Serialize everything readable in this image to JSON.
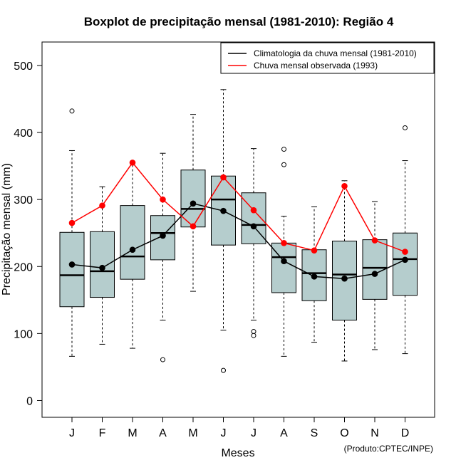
{
  "chart_data": {
    "type": "boxplot",
    "title": "Boxplot de precipitação mensal (1981-2010): Região 4",
    "xlabel": "Meses",
    "ylabel": "Precipitação mensal (mm)",
    "ylim": [
      -25,
      535
    ],
    "yticks": [
      0,
      100,
      200,
      300,
      400,
      500
    ],
    "credit": "(Produto:CPTEC/INPE)",
    "box_color": "#b5cdcd",
    "categories": [
      "J",
      "F",
      "M",
      "A",
      "M",
      "J",
      "J",
      "A",
      "S",
      "O",
      "N",
      "D"
    ],
    "boxes": [
      {
        "whisker_low": 66,
        "q1": 140,
        "median": 187,
        "q3": 251,
        "whisker_high": 373,
        "outliers": [
          432
        ]
      },
      {
        "whisker_low": 84,
        "q1": 154,
        "median": 193,
        "q3": 252,
        "whisker_high": 319,
        "outliers": []
      },
      {
        "whisker_low": 78,
        "q1": 181,
        "median": 215,
        "q3": 291,
        "whisker_high": 356,
        "outliers": []
      },
      {
        "whisker_low": 120,
        "q1": 210,
        "median": 250,
        "q3": 276,
        "whisker_high": 369,
        "outliers": [
          61
        ]
      },
      {
        "whisker_low": 163,
        "q1": 259,
        "median": 286,
        "q3": 344,
        "whisker_high": 427,
        "outliers": []
      },
      {
        "whisker_low": 105,
        "q1": 232,
        "median": 300,
        "q3": 335,
        "whisker_high": 464,
        "outliers": [
          45
        ]
      },
      {
        "whisker_low": 120,
        "q1": 234,
        "median": 262,
        "q3": 310,
        "whisker_high": 376,
        "outliers": [
          97,
          103
        ]
      },
      {
        "whisker_low": 66,
        "q1": 161,
        "median": 214,
        "q3": 235,
        "whisker_high": 275,
        "outliers": [
          352,
          375
        ]
      },
      {
        "whisker_low": 87,
        "q1": 149,
        "median": 190,
        "q3": 225,
        "whisker_high": 289,
        "outliers": []
      },
      {
        "whisker_low": 59,
        "q1": 120,
        "median": 188,
        "q3": 238,
        "whisker_high": 328,
        "outliers": []
      },
      {
        "whisker_low": 76,
        "q1": 151,
        "median": 198,
        "q3": 240,
        "whisker_high": 297,
        "outliers": []
      },
      {
        "whisker_low": 70,
        "q1": 157,
        "median": 211,
        "q3": 250,
        "whisker_high": 358,
        "outliers": [
          407
        ]
      }
    ],
    "series": [
      {
        "name": "Climatologia da chuva mensal (1981-2010)",
        "color": "#000000",
        "values": [
          203,
          198,
          225,
          246,
          294,
          283,
          260,
          208,
          185,
          182,
          189,
          210
        ]
      },
      {
        "name": "Chuva mensal observada (1993)",
        "color": "#ff0000",
        "values": [
          265,
          291,
          355,
          300,
          260,
          333,
          284,
          235,
          224,
          320,
          239,
          222
        ]
      }
    ],
    "legend_position": "top-right"
  }
}
